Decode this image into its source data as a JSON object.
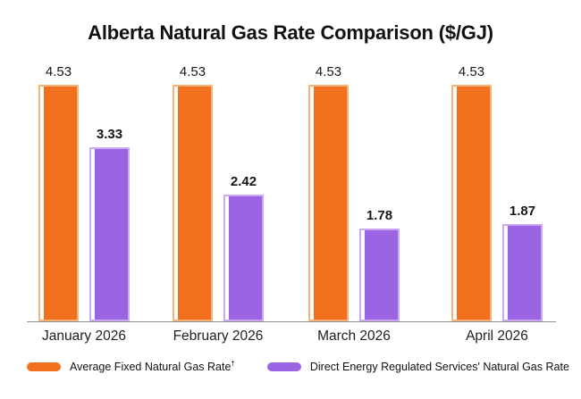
{
  "title": "Alberta Natural Gas Rate Comparison ($/GJ)",
  "colors": {
    "background": "#ffffff",
    "axis_line": "#909090",
    "text": "#111111",
    "orange_main": "#F0701D",
    "orange_light": "#F8B177",
    "purple_main": "#9B64E3",
    "purple_light": "#CBA9F2"
  },
  "chart_data": {
    "type": "bar",
    "title": "Alberta Natural Gas Rate Comparison ($/GJ)",
    "xlabel": "",
    "ylabel": "",
    "categories": [
      "January 2026",
      "February 2026",
      "March 2026",
      "April 2026"
    ],
    "series": [
      {
        "name": "Average Fixed Natural Gas Rate",
        "footnote_mark": "†",
        "color": "#F0701D",
        "light_color": "#F8B177",
        "values": [
          4.53,
          4.53,
          4.53,
          4.53
        ],
        "value_label_bold": false
      },
      {
        "name": "Direct Energy Regulated Services' Natural Gas Rate",
        "footnote_mark": "",
        "color": "#9B64E3",
        "light_color": "#CBA9F2",
        "values": [
          3.33,
          2.42,
          1.78,
          1.87
        ],
        "value_label_bold": true
      }
    ],
    "ylim": [
      0,
      4.53
    ],
    "value_labels_shown": true,
    "grid": false,
    "axis_ticks_shown": false,
    "legend_position": "bottom"
  }
}
